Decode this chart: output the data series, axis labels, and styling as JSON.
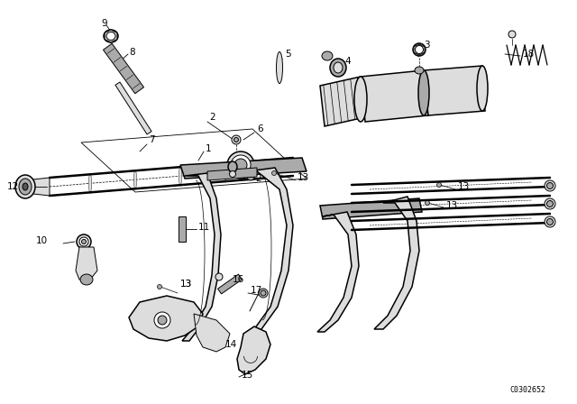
{
  "bg_color": "#ffffff",
  "code": "C0302652",
  "figsize": [
    6.4,
    4.48
  ],
  "dpi": 100,
  "lw_thin": 0.7,
  "lw_med": 1.1,
  "lw_thick": 1.8,
  "gray_light": "#dddddd",
  "gray_mid": "#aaaaaa",
  "gray_dark": "#555555",
  "black": "#000000"
}
